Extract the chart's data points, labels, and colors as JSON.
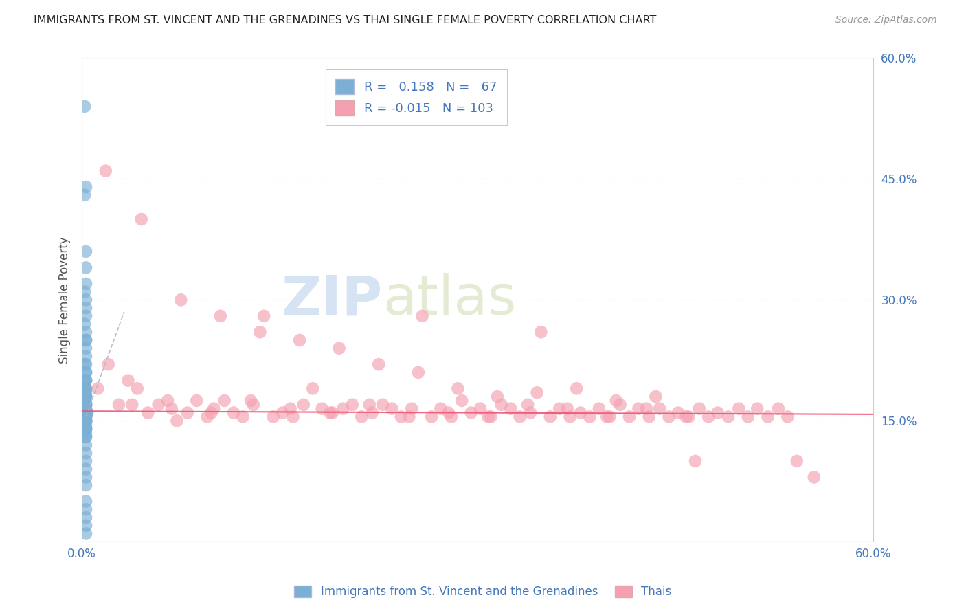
{
  "title": "IMMIGRANTS FROM ST. VINCENT AND THE GRENADINES VS THAI SINGLE FEMALE POVERTY CORRELATION CHART",
  "source": "Source: ZipAtlas.com",
  "ylabel": "Single Female Poverty",
  "xlim": [
    0,
    0.6
  ],
  "ylim": [
    0,
    0.6
  ],
  "yticks": [
    0.15,
    0.3,
    0.45,
    0.6
  ],
  "ytick_labels": [
    "15.0%",
    "30.0%",
    "45.0%",
    "60.0%"
  ],
  "xticks": [
    0.0,
    0.12,
    0.24,
    0.36,
    0.48,
    0.6
  ],
  "xtick_labels": [
    "0.0%",
    "",
    "",
    "",
    "",
    "60.0%"
  ],
  "blue_R": 0.158,
  "blue_N": 67,
  "pink_R": -0.015,
  "pink_N": 103,
  "blue_color": "#7BAFD4",
  "pink_color": "#F4A0B0",
  "blue_line_color": "#4477BB",
  "pink_line_color": "#EE5577",
  "blue_trend_color": "#AABBCC",
  "watermark_color": "#C5D8EE",
  "background_color": "#FFFFFF",
  "grid_color": "#DDDDDD",
  "title_color": "#222222",
  "tick_color": "#4477BB",
  "legend_label_blue": "Immigrants from St. Vincent and the Grenadines",
  "legend_label_pink": "Thais",
  "blue_scatter_x": [
    0.002,
    0.003,
    0.002,
    0.003,
    0.003,
    0.003,
    0.002,
    0.003,
    0.003,
    0.003,
    0.002,
    0.003,
    0.003,
    0.003,
    0.003,
    0.003,
    0.002,
    0.003,
    0.003,
    0.003,
    0.003,
    0.003,
    0.003,
    0.003,
    0.002,
    0.003,
    0.003,
    0.003,
    0.003,
    0.003,
    0.003,
    0.003,
    0.003,
    0.003,
    0.003,
    0.003,
    0.003,
    0.004,
    0.004,
    0.003,
    0.003,
    0.003,
    0.003,
    0.003,
    0.003,
    0.003,
    0.003,
    0.003,
    0.003,
    0.003,
    0.003,
    0.003,
    0.003,
    0.003,
    0.003,
    0.003,
    0.003,
    0.003,
    0.003,
    0.003,
    0.003,
    0.003,
    0.003,
    0.003,
    0.003,
    0.003,
    0.003
  ],
  "blue_scatter_y": [
    0.54,
    0.44,
    0.43,
    0.36,
    0.34,
    0.32,
    0.31,
    0.3,
    0.29,
    0.28,
    0.27,
    0.26,
    0.25,
    0.25,
    0.24,
    0.23,
    0.22,
    0.22,
    0.21,
    0.21,
    0.2,
    0.2,
    0.2,
    0.19,
    0.19,
    0.19,
    0.185,
    0.18,
    0.18,
    0.18,
    0.175,
    0.17,
    0.17,
    0.17,
    0.17,
    0.165,
    0.16,
    0.16,
    0.16,
    0.16,
    0.16,
    0.155,
    0.155,
    0.155,
    0.15,
    0.15,
    0.15,
    0.15,
    0.15,
    0.145,
    0.14,
    0.14,
    0.14,
    0.135,
    0.13,
    0.13,
    0.12,
    0.11,
    0.1,
    0.09,
    0.08,
    0.07,
    0.05,
    0.04,
    0.03,
    0.02,
    0.01
  ],
  "pink_scatter_x": [
    0.012,
    0.02,
    0.028,
    0.035,
    0.042,
    0.05,
    0.058,
    0.065,
    0.072,
    0.08,
    0.087,
    0.095,
    0.1,
    0.108,
    0.115,
    0.122,
    0.13,
    0.138,
    0.145,
    0.152,
    0.16,
    0.168,
    0.175,
    0.182,
    0.19,
    0.198,
    0.205,
    0.212,
    0.22,
    0.228,
    0.235,
    0.242,
    0.25,
    0.258,
    0.265,
    0.272,
    0.28,
    0.288,
    0.295,
    0.302,
    0.31,
    0.318,
    0.325,
    0.332,
    0.34,
    0.348,
    0.355,
    0.362,
    0.37,
    0.378,
    0.385,
    0.392,
    0.4,
    0.408,
    0.415,
    0.422,
    0.43,
    0.438,
    0.445,
    0.452,
    0.46,
    0.468,
    0.475,
    0.482,
    0.49,
    0.498,
    0.505,
    0.512,
    0.52,
    0.528,
    0.535,
    0.542,
    0.018,
    0.045,
    0.075,
    0.105,
    0.135,
    0.165,
    0.195,
    0.225,
    0.255,
    0.285,
    0.315,
    0.345,
    0.375,
    0.405,
    0.435,
    0.465,
    0.038,
    0.068,
    0.098,
    0.128,
    0.158,
    0.188,
    0.218,
    0.248,
    0.278,
    0.308,
    0.338,
    0.368,
    0.398,
    0.428,
    0.458,
    0.555
  ],
  "pink_scatter_y": [
    0.19,
    0.22,
    0.17,
    0.2,
    0.19,
    0.16,
    0.17,
    0.175,
    0.15,
    0.16,
    0.175,
    0.155,
    0.165,
    0.175,
    0.16,
    0.155,
    0.17,
    0.28,
    0.155,
    0.16,
    0.155,
    0.17,
    0.19,
    0.165,
    0.16,
    0.165,
    0.17,
    0.155,
    0.16,
    0.17,
    0.165,
    0.155,
    0.165,
    0.28,
    0.155,
    0.165,
    0.155,
    0.175,
    0.16,
    0.165,
    0.155,
    0.17,
    0.165,
    0.155,
    0.16,
    0.26,
    0.155,
    0.165,
    0.155,
    0.16,
    0.155,
    0.165,
    0.155,
    0.17,
    0.155,
    0.165,
    0.155,
    0.165,
    0.155,
    0.16,
    0.155,
    0.165,
    0.155,
    0.16,
    0.155,
    0.165,
    0.155,
    0.165,
    0.155,
    0.165,
    0.155,
    0.1,
    0.46,
    0.4,
    0.3,
    0.28,
    0.26,
    0.25,
    0.24,
    0.22,
    0.21,
    0.19,
    0.18,
    0.185,
    0.19,
    0.175,
    0.18,
    0.1,
    0.17,
    0.165,
    0.16,
    0.175,
    0.165,
    0.16,
    0.17,
    0.155,
    0.16,
    0.155,
    0.17,
    0.165,
    0.155,
    0.165,
    0.155,
    0.08
  ],
  "pink_trend_y_start": 0.162,
  "pink_trend_y_end": 0.158,
  "blue_trend_x1": 0.003,
  "blue_trend_y1": 0.155,
  "blue_trend_x2": 0.032,
  "blue_trend_y2": 0.285
}
